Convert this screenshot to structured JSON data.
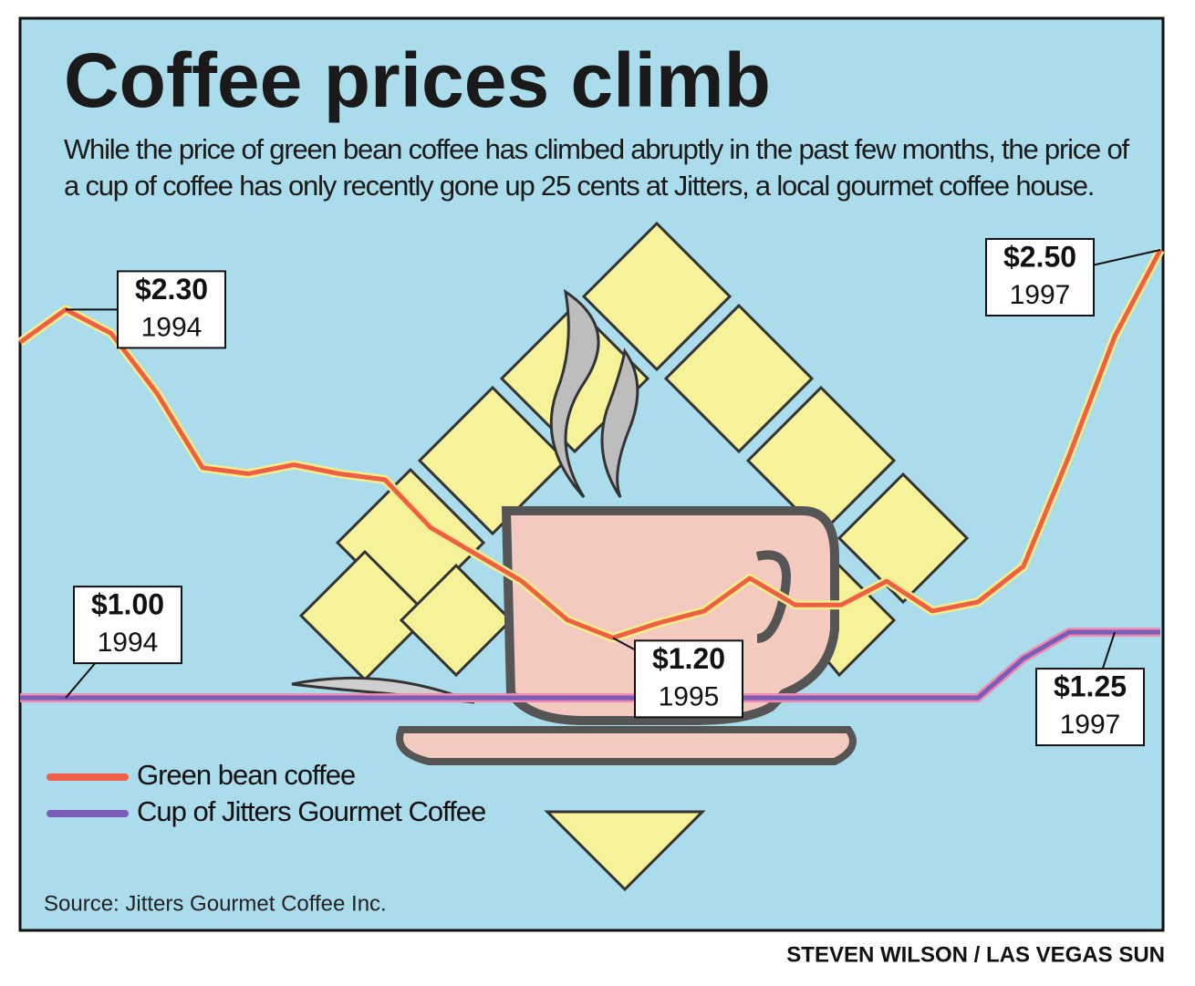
{
  "chart_data": {
    "type": "line",
    "title": "Coffee prices climb",
    "subtitle": "While the price of green bean coffee has climbed abruptly in the past few months, the price of a cup of coffee has only recently gone up 25 cents at Jitters, a local gourmet coffee house.",
    "categories": [
      null,
      null,
      null,
      null,
      null,
      null,
      null,
      null,
      null,
      null,
      null,
      null,
      null,
      null,
      null,
      null,
      null,
      null,
      null,
      null,
      null,
      null,
      null,
      null,
      null,
      null
    ],
    "series": [
      {
        "name": "Green bean coffee",
        "color": "#ef5f45",
        "values": [
          2.19,
          2.3,
          2.22,
          2.02,
          1.77,
          1.75,
          1.78,
          1.75,
          1.73,
          1.57,
          1.48,
          1.39,
          1.26,
          1.2,
          1.25,
          1.29,
          1.4,
          1.31,
          1.31,
          1.39,
          1.29,
          1.32,
          1.44,
          1.81,
          2.21,
          2.5
        ],
        "value_labels": [
          null,
          "$2.30",
          null,
          null,
          null,
          null,
          null,
          null,
          null,
          null,
          null,
          null,
          null,
          "$1.20",
          null,
          null,
          null,
          null,
          null,
          null,
          null,
          null,
          null,
          null,
          null,
          "$2.50"
        ],
        "value_label_years": [
          null,
          "1994",
          null,
          null,
          null,
          null,
          null,
          null,
          null,
          null,
          null,
          null,
          null,
          "1995",
          null,
          null,
          null,
          null,
          null,
          null,
          null,
          null,
          null,
          null,
          null,
          "1997"
        ]
      },
      {
        "name": "Cup of Jitters Gourmet Coffee",
        "color": "#7b5cb8",
        "axis": "y2",
        "values": [
          1.0,
          1.0,
          1.0,
          1.0,
          1.0,
          1.0,
          1.0,
          1.0,
          1.0,
          1.0,
          1.0,
          1.0,
          1.0,
          1.0,
          1.0,
          1.0,
          1.0,
          1.0,
          1.0,
          1.0,
          1.0,
          1.0,
          1.15,
          1.25,
          1.25,
          1.25
        ],
        "value_labels": [
          null,
          "$1.00",
          null,
          null,
          null,
          null,
          null,
          null,
          null,
          null,
          null,
          null,
          null,
          null,
          null,
          null,
          null,
          null,
          null,
          null,
          null,
          null,
          null,
          null,
          "$1.25",
          null
        ],
        "value_label_years": [
          null,
          "1994",
          null,
          null,
          null,
          null,
          null,
          null,
          null,
          null,
          null,
          null,
          null,
          null,
          null,
          null,
          null,
          null,
          null,
          null,
          null,
          null,
          null,
          null,
          "1997",
          null
        ]
      }
    ],
    "ylim": [
      0.22,
      3.27
    ],
    "y2lim": [
      0.115,
      3.58
    ],
    "source": "Source: Jitters Gourmet Coffee Inc.",
    "credit": "STEVEN WILSON / LAS VEGAS SUN"
  }
}
